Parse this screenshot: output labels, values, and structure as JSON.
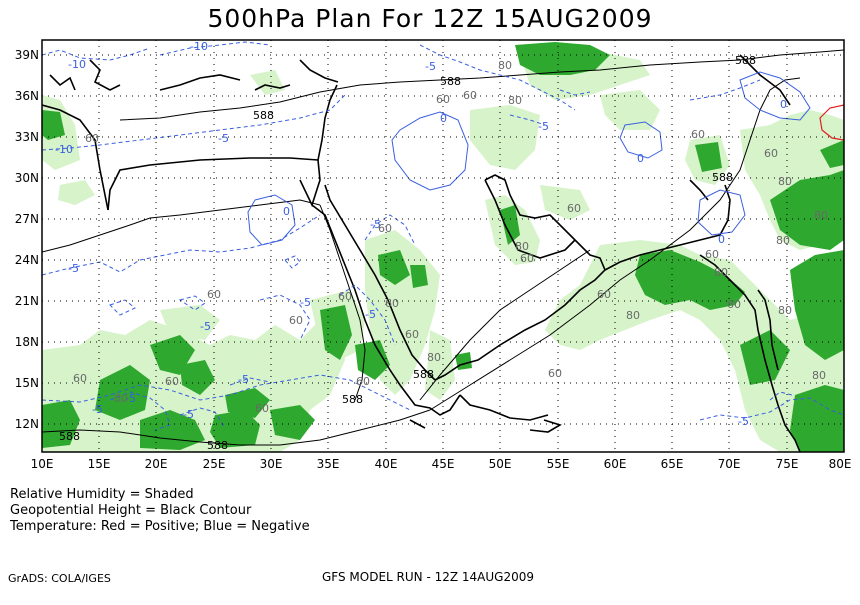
{
  "title": "500hPa Plan For 12Z 15AUG2009",
  "axes": {
    "lat_labels": [
      "39N",
      "36N",
      "33N",
      "30N",
      "27N",
      "24N",
      "21N",
      "18N",
      "15N",
      "12N"
    ],
    "lon_labels": [
      "10E",
      "15E",
      "20E",
      "25E",
      "30E",
      "35E",
      "40E",
      "45E",
      "50E",
      "55E",
      "60E",
      "65E",
      "70E",
      "75E",
      "80E"
    ]
  },
  "contour_labels": {
    "height": [
      "588",
      "588",
      "588",
      "588",
      "588",
      "588",
      "588",
      "588"
    ],
    "temperature_negative": [
      "-10",
      "-10",
      "-10",
      "-5",
      "-5",
      "-5",
      "-5",
      "-5",
      "-5",
      "-5",
      "-5",
      "-5",
      "-5",
      "-5",
      "-5",
      "-5",
      "0",
      "0",
      "0",
      "0",
      "0"
    ],
    "humidity": [
      "60",
      "60",
      "60",
      "60",
      "60",
      "60",
      "60",
      "60",
      "60",
      "60",
      "60",
      "60",
      "60",
      "60",
      "60",
      "60",
      "60",
      "60",
      "60",
      "60",
      "60",
      "80",
      "80",
      "80",
      "80",
      "80",
      "80",
      "80",
      "80",
      "80",
      "80",
      "80",
      "80"
    ]
  },
  "legend": {
    "line1": "Relative Humidity = Shaded",
    "line2": "Geopotential Height = Black Contour",
    "line3": "Temperature: Red = Positive; Blue = Negative"
  },
  "footer": {
    "left": "GrADS: COLA/IGES",
    "center": "GFS MODEL RUN - 12Z 14AUG2009"
  },
  "colors": {
    "rh_60": "#d6f3c9",
    "rh_80": "#2ea82e",
    "height_contour": "#000000",
    "temp_negative": "#3a5fe0",
    "temp_positive": "#e02020",
    "coastline": "#000000"
  }
}
